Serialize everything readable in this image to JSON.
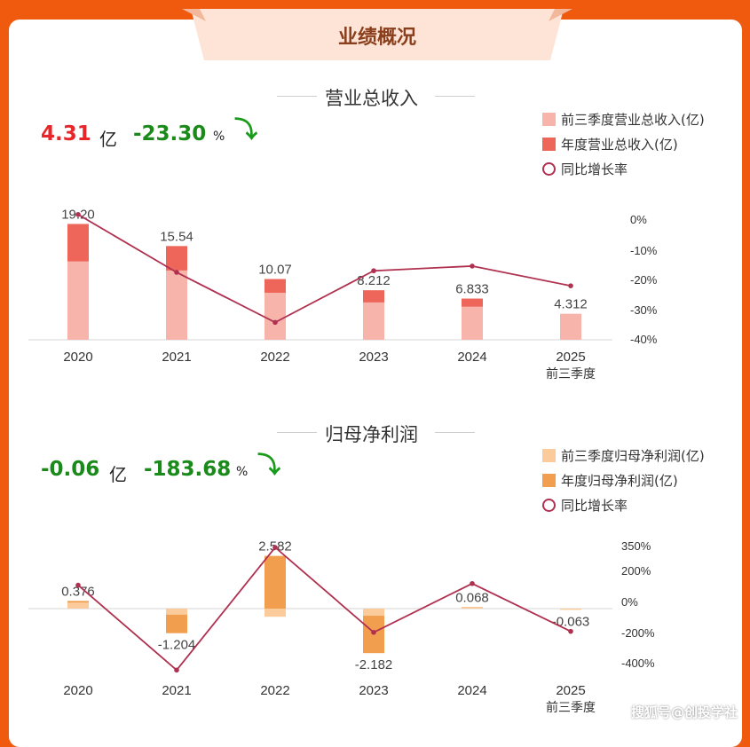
{
  "header": {
    "title": "业绩概况"
  },
  "revenue": {
    "section_title": "营业总收入",
    "value": "4.31",
    "value_unit": "亿",
    "change": "-23.30",
    "change_unit": "%",
    "legend": [
      "前三季度营业总收入(亿)",
      "年度营业总收入(亿)",
      "同比增长率"
    ]
  },
  "profit": {
    "section_title": "归母净利润",
    "value": "-0.06",
    "value_unit": "亿",
    "change": "-183.68",
    "change_unit": "%",
    "legend": [
      "前三季度归母净利润(亿)",
      "年度归母净利润(亿)",
      "同比增长率"
    ]
  },
  "watermark": "搜狐号@创投学社",
  "colors": {
    "rev_q3": "#f6b4ab",
    "rev_year": "#ee6559",
    "profit_q3": "#fbcb9c",
    "profit_year": "#f29e4f",
    "growth_line": "#b03050",
    "value_red": "#e8262a",
    "value_green": "#1a8a1a"
  },
  "chart_data": [
    {
      "type": "bar",
      "categories": [
        "2020",
        "2021",
        "2022",
        "2023",
        "2024",
        "2025 前三季度"
      ],
      "series": [
        {
          "name": "前三季度营业总收入(亿)",
          "values": [
            13.0,
            11.5,
            7.8,
            6.2,
            5.5,
            4.312
          ]
        },
        {
          "name": "年度营业总收入(亿)",
          "values": [
            19.2,
            15.54,
            10.07,
            8.212,
            6.833,
            null
          ]
        },
        {
          "name": "同比增长率",
          "values": [
            -0.5,
            -19,
            -35,
            -18.5,
            -17,
            -23.3
          ]
        }
      ],
      "bar_labels": [
        "19.20",
        "15.54",
        "10.07",
        "8.212",
        "6.833",
        "4.312"
      ],
      "y2_ticks": [
        "0%",
        "-10%",
        "-20%",
        "-30%",
        "-40%"
      ],
      "y2lim": [
        -40,
        0
      ]
    },
    {
      "type": "bar",
      "categories": [
        "2020",
        "2021",
        "2022",
        "2023",
        "2024",
        "2025 前三季度"
      ],
      "series": [
        {
          "name": "前三季度归母净利润(亿)",
          "values": [
            0.3,
            -0.3,
            -0.4,
            -0.35,
            0.04,
            -0.063
          ]
        },
        {
          "name": "年度归母净利润(亿)",
          "values": [
            0.376,
            -1.204,
            2.582,
            -2.182,
            0.068,
            null
          ]
        },
        {
          "name": "同比增长率",
          "values": [
            110,
            -430,
            350,
            -190,
            120,
            -183.68
          ]
        }
      ],
      "bar_labels": [
        "0.376",
        "-1.204",
        "2.582",
        "-2.182",
        "0.068",
        "-0.063"
      ],
      "y2_ticks": [
        "350%",
        "200%",
        "0%",
        "-200%",
        "-400%"
      ],
      "y2lim": [
        -400,
        350
      ]
    }
  ]
}
